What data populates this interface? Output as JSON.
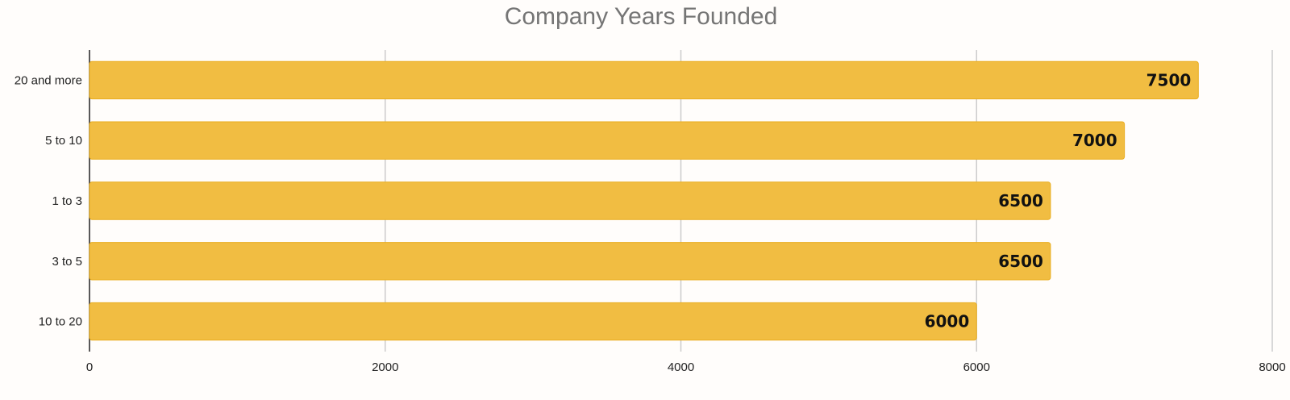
{
  "chart_data": {
    "type": "bar",
    "orientation": "horizontal",
    "title": "Company Years Founded",
    "xlabel": "",
    "ylabel": "",
    "categories": [
      "20 and more",
      "5 to 10",
      "1 to 3",
      "3 to 5",
      "10 to 20"
    ],
    "values": [
      7500,
      7000,
      6500,
      6500,
      6000
    ],
    "xlim": [
      0,
      8000
    ],
    "xticks": [
      "0",
      "2000",
      "4000",
      "6000",
      "8000"
    ],
    "grid": "vertical",
    "legend": "none",
    "data_labels": true
  },
  "colors": {
    "bar": "#f1bd42",
    "bar_edge": "#e9ad1f",
    "background": "#fffdfb",
    "title": "#757575",
    "grid": "#cccccc"
  }
}
